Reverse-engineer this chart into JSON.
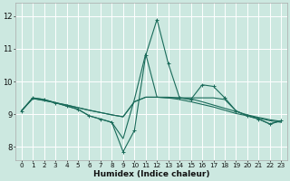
{
  "xlabel": "Humidex (Indice chaleur)",
  "xlim": [
    -0.5,
    23.5
  ],
  "ylim": [
    7.6,
    12.4
  ],
  "yticks": [
    8,
    9,
    10,
    11,
    12
  ],
  "xticks": [
    0,
    1,
    2,
    3,
    4,
    5,
    6,
    7,
    8,
    9,
    10,
    11,
    12,
    13,
    14,
    15,
    16,
    17,
    18,
    19,
    20,
    21,
    22,
    23
  ],
  "bg_color": "#cce8e0",
  "grid_color": "#ffffff",
  "line_color": "#1a6b5a",
  "lines": [
    {
      "y": [
        9.1,
        9.5,
        9.45,
        9.35,
        9.25,
        9.15,
        8.95,
        8.85,
        8.75,
        7.85,
        8.5,
        10.8,
        11.9,
        10.55,
        9.5,
        9.45,
        9.9,
        9.85,
        9.5,
        9.1,
        8.95,
        8.85,
        8.7,
        8.8
      ],
      "marker": "+"
    },
    {
      "y": [
        9.1,
        9.5,
        9.45,
        9.35,
        9.25,
        9.15,
        8.95,
        8.85,
        8.75,
        8.25,
        9.45,
        10.85,
        9.52,
        9.5,
        9.5,
        9.5,
        9.5,
        9.5,
        9.45,
        9.1,
        8.95,
        8.85,
        8.7,
        8.8
      ],
      "marker": null
    },
    {
      "y": [
        9.1,
        9.48,
        9.42,
        9.35,
        9.28,
        9.2,
        9.12,
        9.05,
        8.98,
        8.92,
        9.38,
        9.52,
        9.52,
        9.52,
        9.5,
        9.47,
        9.38,
        9.28,
        9.18,
        9.08,
        8.98,
        8.9,
        8.83,
        8.78
      ],
      "marker": null
    },
    {
      "y": [
        9.1,
        9.48,
        9.42,
        9.35,
        9.28,
        9.2,
        9.12,
        9.05,
        8.98,
        8.92,
        9.38,
        9.52,
        9.52,
        9.5,
        9.45,
        9.38,
        9.3,
        9.22,
        9.12,
        9.02,
        8.95,
        8.88,
        8.8,
        8.75
      ],
      "marker": null
    }
  ]
}
